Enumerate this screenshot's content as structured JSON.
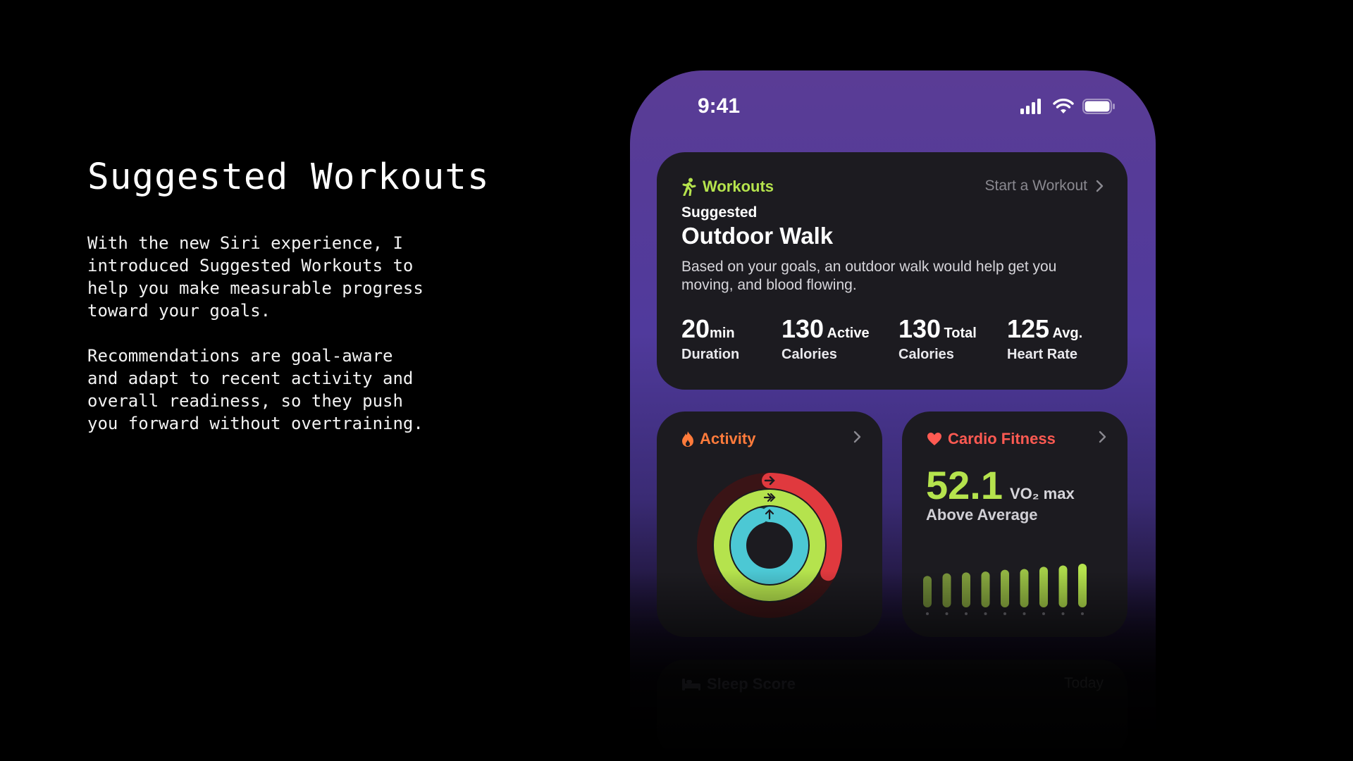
{
  "intro": {
    "title": "Suggested Workouts",
    "paragraph1": "With the new Siri experience, I\nintroduced Suggested Workouts to\nhelp you make measurable progress\ntoward your goals.",
    "paragraph2": "Recommendations are goal-aware\nand adapt to recent activity and\noverall readiness, so they push\nyou forward without overtraining."
  },
  "status_bar": {
    "time": "9:41",
    "icons": [
      "signal-icon",
      "wifi-icon",
      "battery-icon"
    ]
  },
  "workouts": {
    "header": "Workouts",
    "icon": "figure-walk-icon",
    "link": "Start a Workout",
    "eyebrow": "Suggested",
    "title": "Outdoor Walk",
    "description": "Based on your goals, an outdoor walk would help get you moving, and blood flowing.",
    "metrics": [
      {
        "value": "20",
        "unit": "min",
        "label": "Duration"
      },
      {
        "value": "130",
        "unit": "Active",
        "label": "Calories"
      },
      {
        "value": "130",
        "unit": "Total",
        "label": "Calories"
      },
      {
        "value": "125",
        "unit": "Avg.",
        "label": "Heart Rate"
      }
    ]
  },
  "activity": {
    "header": "Activity",
    "icon": "flame-icon",
    "rings": [
      {
        "name": "move",
        "color": "#e0393e",
        "progress": 0.32
      },
      {
        "name": "exercise",
        "color": "#b5e34d",
        "progress": 1.0
      },
      {
        "name": "stand",
        "color": "#4cc8d4",
        "progress": 0.95
      }
    ]
  },
  "cardio": {
    "header": "Cardio Fitness",
    "icon": "heart-icon",
    "value": "52.1",
    "unit": "VO₂ max",
    "status": "Above Average",
    "bars": [
      0.72,
      0.78,
      0.8,
      0.82,
      0.86,
      0.88,
      0.93,
      0.96,
      1.0
    ]
  },
  "sleep": {
    "header": "Sleep Score",
    "icon": "bed-icon",
    "link": "Today"
  },
  "colors": {
    "accent_green": "#b5e34d",
    "activity_orange": "#ff7b3b",
    "cardio_red": "#ff5a52"
  }
}
